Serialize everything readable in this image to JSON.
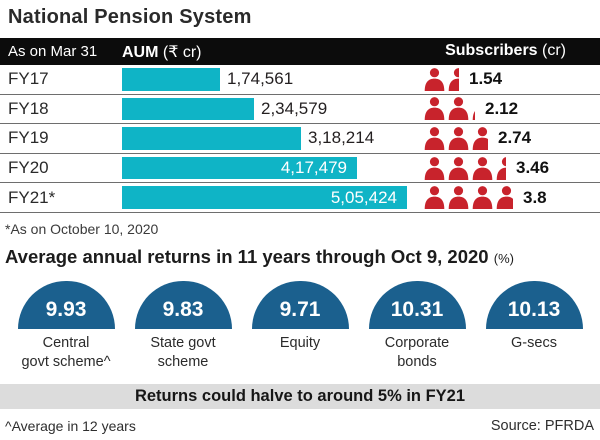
{
  "title": "National Pension System",
  "table": {
    "header": {
      "col_date": "As on Mar 31",
      "col_aum_bold": "AUM",
      "col_aum_rest": "(₹ cr)",
      "col_subs_bold": "Subscribers",
      "col_subs_rest": "(cr)"
    },
    "rows": [
      {
        "year": "FY17",
        "aum": 174561,
        "aum_label": "1,74,561",
        "subscribers": 1.54,
        "subscribers_label": "1.54"
      },
      {
        "year": "FY18",
        "aum": 234579,
        "aum_label": "2,34,579",
        "subscribers": 2.12,
        "subscribers_label": "2.12"
      },
      {
        "year": "FY19",
        "aum": 318214,
        "aum_label": "3,18,214",
        "subscribers": 2.74,
        "subscribers_label": "2.74"
      },
      {
        "year": "FY20",
        "aum": 417479,
        "aum_label": "4,17,479",
        "subscribers": 3.46,
        "subscribers_label": "3.46"
      },
      {
        "year": "FY21*",
        "aum": 505424,
        "aum_label": "5,05,424",
        "subscribers": 3.8,
        "subscribers_label": "3.8"
      }
    ],
    "footnote": "*As on October 10, 2020"
  },
  "returns": {
    "heading": "Average annual returns in 11 years through Oct 9, 2020 ",
    "heading_suffix": "(%)",
    "items": [
      {
        "value": "9.93",
        "label": "Central\ngovt scheme^"
      },
      {
        "value": "9.83",
        "label": "State govt\nscheme"
      },
      {
        "value": "9.71",
        "label": "Equity"
      },
      {
        "value": "10.31",
        "label": "Corporate\nbonds"
      },
      {
        "value": "10.13",
        "label": "G-secs"
      }
    ]
  },
  "banner": "Returns could halve to around 5% in FY21",
  "footer": {
    "left": "^Average in 12 years",
    "right": "Source: PFRDA"
  },
  "colors": {
    "bar_cyan": "#0fb4c6",
    "icon_red": "#c8232c",
    "dome_blue": "#1b608e",
    "header_bg": "#0c0c0c",
    "banner_bg": "#dcdcdc"
  },
  "chart_data": [
    {
      "type": "bar",
      "title": "AUM (₹ cr) as on Mar 31",
      "categories": [
        "FY17",
        "FY18",
        "FY19",
        "FY20",
        "FY21*"
      ],
      "series": [
        {
          "name": "AUM (₹ cr)",
          "values": [
            174561,
            234579,
            318214,
            417479,
            505424
          ]
        },
        {
          "name": "Subscribers (cr)",
          "values": [
            1.54,
            2.12,
            2.74,
            3.46,
            3.8
          ]
        }
      ],
      "xlabel": "",
      "ylabel": "AUM (₹ cr)",
      "ylim": [
        0,
        505424
      ],
      "note": "*As on October 10, 2020; subscribers shown as red pictograph icons"
    },
    {
      "type": "bar",
      "title": "Average annual returns in 11 years through Oct 9, 2020 (%)",
      "categories": [
        "Central govt scheme^",
        "State govt scheme",
        "Equity",
        "Corporate bonds",
        "G-secs"
      ],
      "values": [
        9.93,
        9.83,
        9.71,
        10.31,
        10.13
      ],
      "xlabel": "",
      "ylabel": "Returns (%)",
      "note": "^Average in 12 years; rendered as blue semicircle domes"
    }
  ]
}
